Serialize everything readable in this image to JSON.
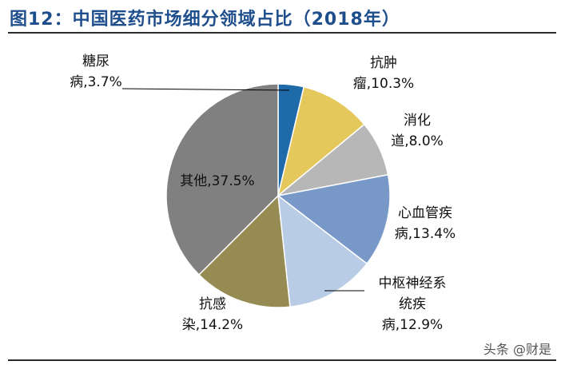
{
  "title": "图12：中国医药市场细分领域占比（2018年）",
  "watermark": "头条 @财是",
  "chart_data": {
    "type": "pie",
    "title": "中国医药市场细分领域占比（2018年）",
    "slices": [
      {
        "name": "糖尿病",
        "value": 3.7,
        "label_lines": [
          "糖尿",
          "病,3.7%"
        ],
        "color": "#1f6aa8"
      },
      {
        "name": "抗肿瘤",
        "value": 10.3,
        "label_lines": [
          "抗肿",
          "瘤,10.3%"
        ],
        "color": "#e5c85c"
      },
      {
        "name": "消化道",
        "value": 8.0,
        "label_lines": [
          "消化",
          "道,8.0%"
        ],
        "color": "#b7b7b7"
      },
      {
        "name": "心血管疾病",
        "value": 13.4,
        "label_lines": [
          "心血管疾",
          "病,13.4%"
        ],
        "color": "#7899c8"
      },
      {
        "name": "中枢神经系统疾病",
        "value": 12.9,
        "label_lines": [
          "中枢神经系",
          "统疾",
          "病,12.9%"
        ],
        "color": "#b9cce6"
      },
      {
        "name": "抗感染",
        "value": 14.2,
        "label_lines": [
          "抗感",
          "染,14.2%"
        ],
        "color": "#958b53"
      },
      {
        "name": "其他",
        "value": 37.5,
        "label_lines": [
          "其他,37.5%"
        ],
        "color": "#808080"
      }
    ]
  }
}
